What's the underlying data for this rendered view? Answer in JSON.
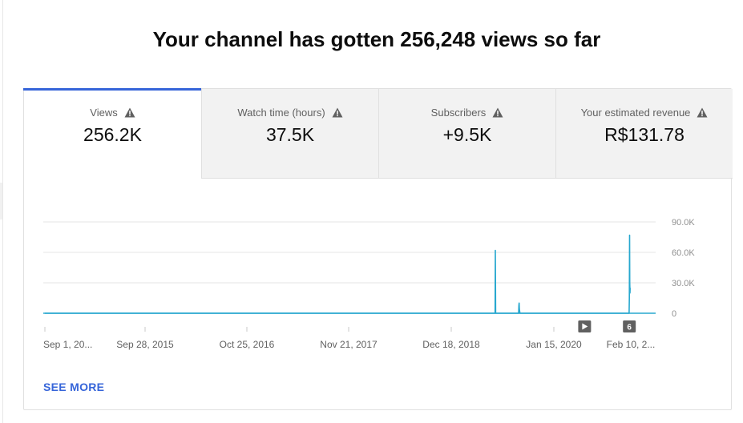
{
  "header": {
    "title": "Your channel has gotten 256,248 views so far"
  },
  "tabs": [
    {
      "label": "Views",
      "value": "256.2K",
      "icon": "warning-icon",
      "active": true
    },
    {
      "label": "Watch time (hours)",
      "value": "37.5K",
      "icon": "warning-icon",
      "active": false
    },
    {
      "label": "Subscribers",
      "value": "+9.5K",
      "icon": "warning-icon",
      "active": false
    },
    {
      "label": "Your estimated revenue",
      "value": "R$131.78",
      "icon": "warning-icon",
      "active": false
    }
  ],
  "chart_data": {
    "type": "line",
    "title": "",
    "xlabel": "",
    "ylabel": "",
    "x_ticks": [
      "Sep 1, 20...",
      "Sep 28, 2015",
      "Oct 25, 2016",
      "Nov 21, 2017",
      "Dec 18, 2018",
      "Jan 15, 2020",
      "Feb 10, 2..."
    ],
    "y_ticks": [
      "90.0K",
      "60.0K",
      "30.0K",
      "0"
    ],
    "ylim": [
      0,
      90000
    ],
    "y_axis_side": "right",
    "grid": true,
    "color": "#28a8cf",
    "series": [
      {
        "points": [
          {
            "x": "2014-09-01",
            "y": 0
          },
          {
            "x": "2019-06-04",
            "y": 0
          },
          {
            "x": "2019-06-05",
            "y": 62000
          },
          {
            "x": "2019-06-06",
            "y": 0
          },
          {
            "x": "2019-09-02",
            "y": 0
          },
          {
            "x": "2019-09-03",
            "y": 8000
          },
          {
            "x": "2019-09-04",
            "y": 10000
          },
          {
            "x": "2019-09-05",
            "y": 4000
          },
          {
            "x": "2019-09-07",
            "y": 0
          },
          {
            "x": "2021-01-21",
            "y": 0
          },
          {
            "x": "2021-01-22",
            "y": 15000
          },
          {
            "x": "2021-01-23",
            "y": 77000
          },
          {
            "x": "2021-01-24",
            "y": 30000
          },
          {
            "x": "2021-01-25",
            "y": 20000
          },
          {
            "x": "2021-01-26",
            "y": 25000
          }
        ]
      }
    ],
    "markers": [
      {
        "icon": "play-icon",
        "x": "2020-06-15"
      },
      {
        "label": "6",
        "x": "2021-01-22"
      }
    ]
  },
  "footer": {
    "see_more": "SEE MORE"
  }
}
